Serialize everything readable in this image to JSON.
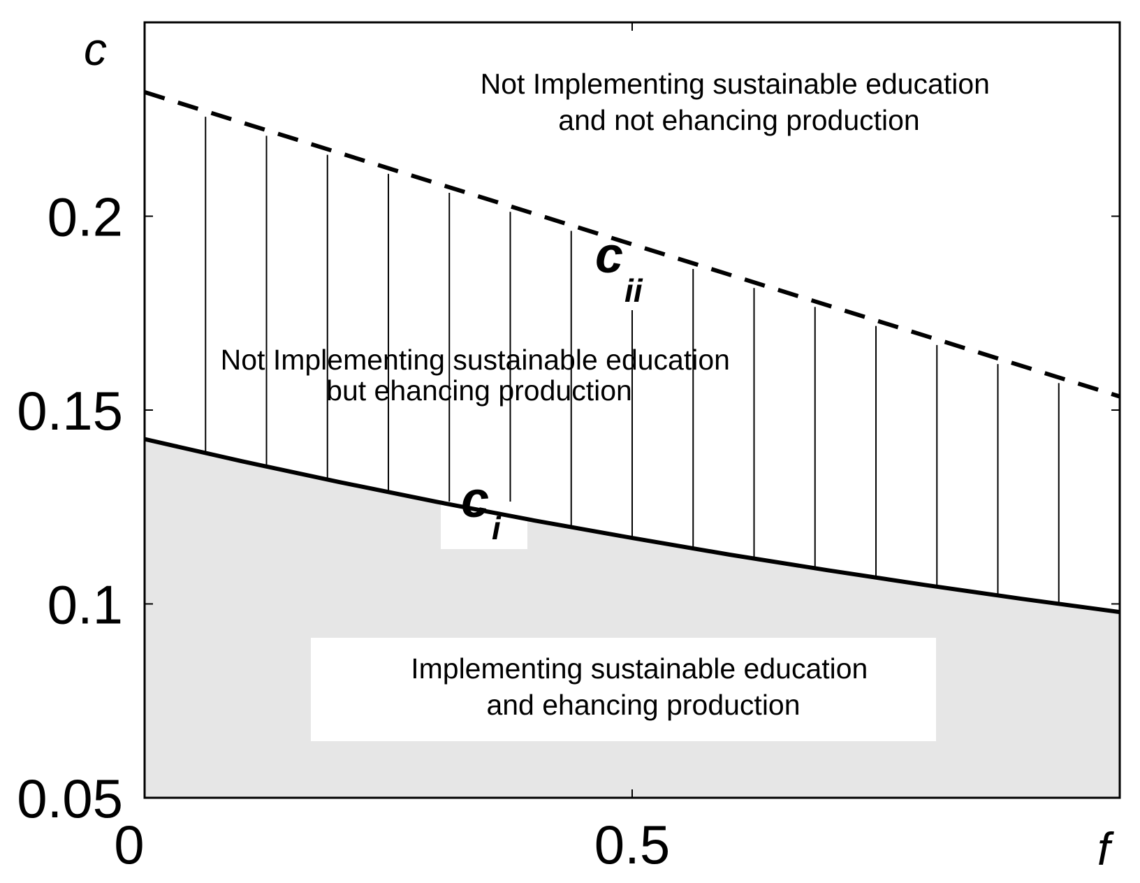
{
  "chart_data": {
    "type": "area",
    "x_axis": {
      "variable": "f",
      "range": [
        0,
        1
      ],
      "ticks": [
        0,
        0.5
      ],
      "tick_labels": [
        "0",
        "0.5"
      ]
    },
    "y_axis": {
      "variable": "c",
      "range": [
        0.05,
        0.25
      ],
      "ticks": [
        0.05,
        0.1,
        0.15,
        0.2
      ],
      "tick_labels": [
        "0.05",
        "0.1",
        "0.15",
        "0.2"
      ]
    },
    "grid": false,
    "series": [
      {
        "label": "c",
        "subscript": "i",
        "style": "solid",
        "x": [
          0,
          0.1,
          0.2,
          0.3,
          0.4,
          0.5,
          0.6,
          0.7,
          0.8,
          0.9,
          1.0
        ],
        "y": [
          0.1425,
          0.1368,
          0.1314,
          0.1263,
          0.1215,
          0.117,
          0.1127,
          0.1087,
          0.1049,
          0.1013,
          0.0979
        ]
      },
      {
        "label": "c",
        "subscript": "ii",
        "style": "dashed",
        "x": [
          0,
          1.0
        ],
        "y": [
          0.232,
          0.1535
        ]
      }
    ],
    "regions": [
      {
        "lines": [
          "Not Implementing sustainable education",
          "and not ehancing production"
        ],
        "fill": "none"
      },
      {
        "lines": [
          "Not Implementing sustainable education",
          "but ehancing production"
        ],
        "fill": "vertical-hatch"
      },
      {
        "lines": [
          "Implementing sustainable education",
          "and ehancing production"
        ],
        "fill": "#e6e6e6"
      }
    ]
  }
}
